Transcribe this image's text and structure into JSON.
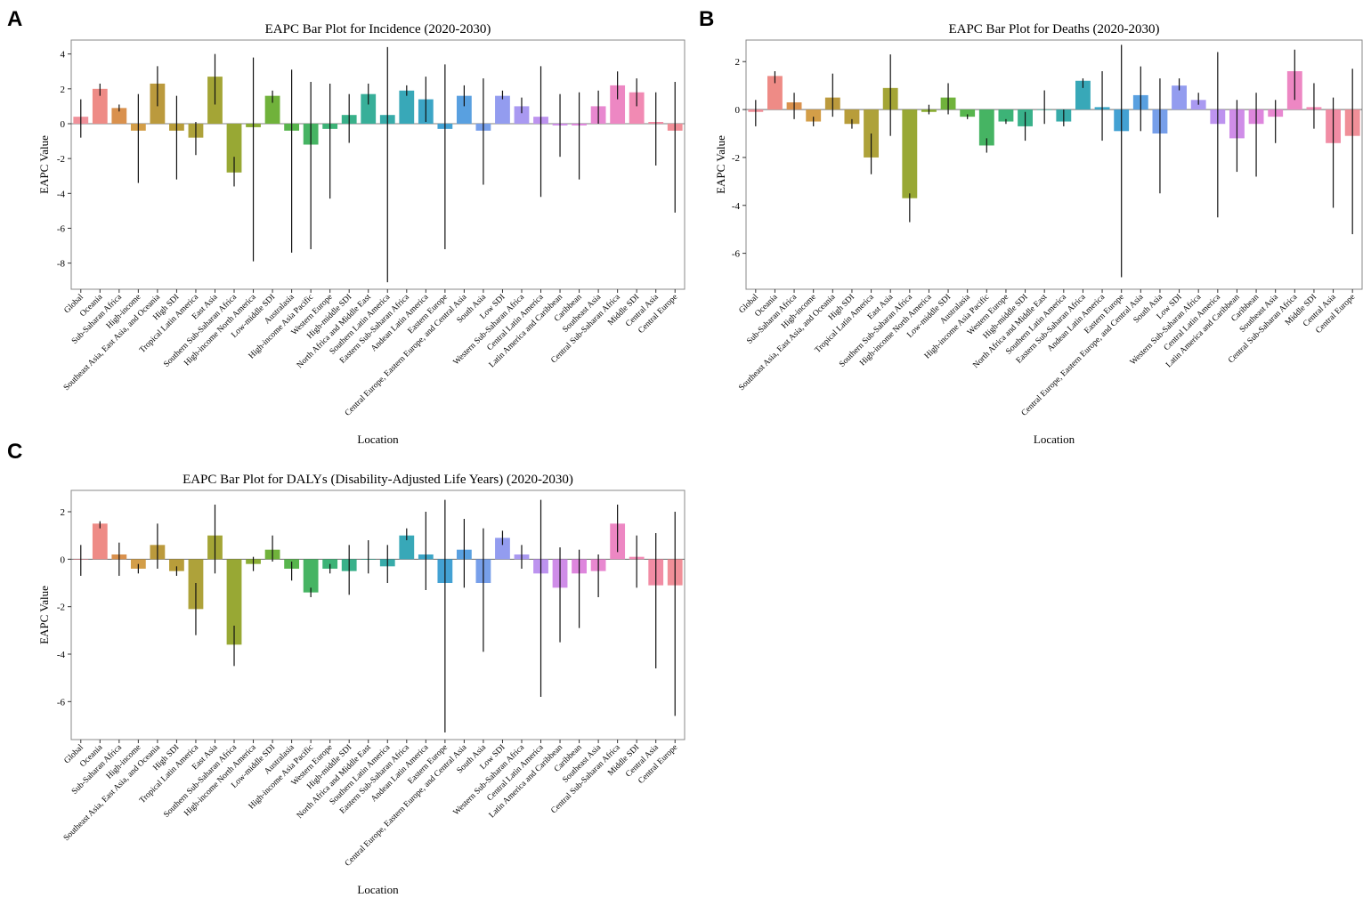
{
  "panels": [
    {
      "letter": "A"
    },
    {
      "letter": "B"
    },
    {
      "letter": "C"
    }
  ],
  "chart_data": [
    {
      "type": "bar",
      "title": "EAPC Bar Plot for Incidence (2020-2030)",
      "xlabel": "Location",
      "ylabel": "EAPC Value",
      "ylim": [
        -9.5,
        4.8
      ],
      "yticks": [
        -8,
        -6,
        -4,
        -2,
        0,
        2,
        4
      ],
      "categories": [
        "Global",
        "Oceania",
        "Sub-Saharan Africa",
        "High-income",
        "Southeast Asia, East Asia, and Oceania",
        "High SDI",
        "Tropical Latin America",
        "East Asia",
        "Southern Sub-Saharan Africa",
        "High-income North America",
        "Low-middle SDI",
        "Australasia",
        "High-income Asia Pacific",
        "Western Europe",
        "High-middle SDI",
        "North Africa and Middle East",
        "Southern Latin America",
        "Eastern Sub-Saharan Africa",
        "Andean Latin America",
        "Eastern Europe",
        "Central Europe, Eastern Europe, and Central Asia",
        "South Asia",
        "Low SDI",
        "Western Sub-Saharan Africa",
        "Central Latin America",
        "Latin America and Caribbean",
        "Caribbean",
        "Southeast Asia",
        "Central Sub-Saharan Africa",
        "Middle SDI",
        "Central Asia",
        "Central Europe"
      ],
      "values": [
        0.4,
        2.0,
        0.9,
        -0.4,
        2.3,
        -0.4,
        -0.8,
        2.7,
        -2.8,
        -0.2,
        1.6,
        -0.4,
        -1.2,
        -0.3,
        0.5,
        1.7,
        0.5,
        1.9,
        1.4,
        -0.3,
        1.6,
        -0.4,
        1.6,
        1.0,
        0.4,
        -0.1,
        -0.1,
        1.0,
        2.2,
        1.8,
        0.1,
        -0.4
      ],
      "err_low": [
        -0.8,
        1.6,
        0.7,
        -3.4,
        1.0,
        -3.2,
        -1.8,
        1.1,
        -3.6,
        -7.9,
        1.2,
        -7.4,
        -7.2,
        -4.3,
        -1.1,
        1.1,
        -9.1,
        1.6,
        0.1,
        -7.2,
        1.0,
        -3.5,
        1.4,
        0.6,
        -4.2,
        -1.9,
        -3.2,
        0.0,
        1.4,
        1.0,
        -2.4,
        -5.1
      ],
      "err_high": [
        1.4,
        2.3,
        1.1,
        1.7,
        3.3,
        1.6,
        0.1,
        4.0,
        -1.9,
        3.8,
        1.9,
        3.1,
        2.4,
        2.3,
        1.7,
        2.3,
        4.4,
        2.2,
        2.7,
        3.4,
        2.2,
        2.6,
        1.9,
        1.5,
        3.3,
        1.7,
        1.8,
        1.9,
        3.0,
        2.6,
        1.8,
        2.4
      ],
      "colors": [
        "#f0919a",
        "#ee8b86",
        "#d9914e",
        "#d39e48",
        "#bb9a3d",
        "#b89d3a",
        "#aea23a",
        "#a4a536",
        "#98a834",
        "#8bad35",
        "#70b23b",
        "#57b54d",
        "#46b463",
        "#3db377",
        "#39b18a",
        "#38af99",
        "#37aba9",
        "#38a8b8",
        "#3ca5c6",
        "#43a1d3",
        "#59a0e0",
        "#779fea",
        "#939cef",
        "#a999f1",
        "#bd93ef",
        "#cf8de8",
        "#de86dd",
        "#e888d0",
        "#ed87c3",
        "#f18ab3",
        "#f18ca4",
        "#f08f98"
      ]
    },
    {
      "type": "bar",
      "title": "EAPC Bar Plot for Deaths (2020-2030)",
      "xlabel": "Location",
      "ylabel": "EAPC Value",
      "ylim": [
        -7.5,
        2.9
      ],
      "yticks": [
        -6,
        -4,
        -2,
        0,
        2
      ],
      "categories": [
        "Global",
        "Oceania",
        "Sub-Saharan Africa",
        "High-income",
        "Southeast Asia, East Asia, and Oceania",
        "High SDI",
        "Tropical Latin America",
        "East Asia",
        "Southern Sub-Saharan Africa",
        "High-income North America",
        "Low-middle SDI",
        "Australasia",
        "High-income Asia Pacific",
        "Western Europe",
        "High-middle SDI",
        "North Africa and Middle East",
        "Southern Latin America",
        "Eastern Sub-Saharan Africa",
        "Andean Latin America",
        "Eastern Europe",
        "Central Europe, Eastern Europe, and Central Asia",
        "South Asia",
        "Low SDI",
        "Western Sub-Saharan Africa",
        "Central Latin America",
        "Latin America and Caribbean",
        "Caribbean",
        "Southeast Asia",
        "Central Sub-Saharan Africa",
        "Middle SDI",
        "Central Asia",
        "Central Europe"
      ],
      "values": [
        -0.1,
        1.4,
        0.3,
        -0.5,
        0.5,
        -0.6,
        -2.0,
        0.9,
        -3.7,
        -0.1,
        0.5,
        -0.3,
        -1.5,
        -0.5,
        -0.7,
        0.0,
        -0.5,
        1.2,
        0.1,
        -0.9,
        0.6,
        -1.0,
        1.0,
        0.4,
        -0.6,
        -1.2,
        -0.6,
        -0.3,
        1.6,
        0.1,
        -1.4,
        -1.1
      ],
      "err_low": [
        -0.7,
        1.1,
        -0.4,
        -0.7,
        -0.3,
        -0.8,
        -2.7,
        -1.1,
        -4.7,
        -0.2,
        -0.2,
        -0.4,
        -1.8,
        -0.6,
        -1.3,
        -0.6,
        -0.7,
        0.9,
        -1.3,
        -7.0,
        -0.9,
        -3.5,
        0.8,
        0.2,
        -4.5,
        -2.6,
        -2.8,
        -1.4,
        0.4,
        -0.8,
        -4.1,
        -5.2
      ],
      "err_high": [
        0.4,
        1.6,
        0.7,
        -0.3,
        1.5,
        -0.4,
        -1.0,
        2.3,
        -3.5,
        0.2,
        1.1,
        -0.2,
        -1.2,
        -0.4,
        -0.1,
        0.8,
        0.0,
        1.3,
        1.6,
        2.7,
        1.8,
        1.3,
        1.3,
        0.7,
        2.4,
        0.4,
        0.7,
        0.4,
        2.5,
        1.1,
        0.5,
        1.7
      ],
      "colors": [
        "#f0919a",
        "#ee8b86",
        "#d9914e",
        "#d39e48",
        "#bb9a3d",
        "#b89d3a",
        "#aea23a",
        "#a4a536",
        "#98a834",
        "#8bad35",
        "#70b23b",
        "#57b54d",
        "#46b463",
        "#3db377",
        "#39b18a",
        "#38af99",
        "#37aba9",
        "#38a8b8",
        "#3ca5c6",
        "#43a1d3",
        "#59a0e0",
        "#779fea",
        "#939cef",
        "#a999f1",
        "#bd93ef",
        "#cf8de8",
        "#de86dd",
        "#e888d0",
        "#ed87c3",
        "#f18ab3",
        "#f18ca4",
        "#f08f98"
      ]
    },
    {
      "type": "bar",
      "title": "EAPC Bar Plot for DALYs (Disability-Adjusted Life Years) (2020-2030)",
      "xlabel": "Location",
      "ylabel": "EAPC Value",
      "ylim": [
        -7.6,
        2.9
      ],
      "yticks": [
        -6,
        -4,
        -2,
        0,
        2
      ],
      "categories": [
        "Global",
        "Oceania",
        "Sub-Saharan Africa",
        "High-income",
        "Southeast Asia, East Asia, and Oceania",
        "High SDI",
        "Tropical Latin America",
        "East Asia",
        "Southern Sub-Saharan Africa",
        "High-income North America",
        "Low-middle SDI",
        "Australasia",
        "High-income Asia Pacific",
        "Western Europe",
        "High-middle SDI",
        "North Africa and Middle East",
        "Southern Latin America",
        "Eastern Sub-Saharan Africa",
        "Andean Latin America",
        "Eastern Europe",
        "Central Europe, Eastern Europe, and Central Asia",
        "South Asia",
        "Low SDI",
        "Western Sub-Saharan Africa",
        "Central Latin America",
        "Latin America and Caribbean",
        "Caribbean",
        "Southeast Asia",
        "Central Sub-Saharan Africa",
        "Middle SDI",
        "Central Asia",
        "Central Europe"
      ],
      "values": [
        0.0,
        1.5,
        0.2,
        -0.4,
        0.6,
        -0.5,
        -2.1,
        1.0,
        -3.6,
        -0.2,
        0.4,
        -0.4,
        -1.4,
        -0.4,
        -0.5,
        0.0,
        -0.3,
        1.0,
        0.2,
        -1.0,
        0.4,
        -1.0,
        0.9,
        0.2,
        -0.6,
        -1.2,
        -0.6,
        -0.5,
        1.5,
        0.1,
        -1.1,
        -1.1
      ],
      "err_low": [
        -0.7,
        1.3,
        -0.7,
        -0.6,
        -0.4,
        -0.7,
        -3.2,
        -0.6,
        -4.5,
        -0.5,
        -0.1,
        -0.9,
        -1.6,
        -0.6,
        -1.5,
        -0.6,
        -1.0,
        0.8,
        -1.3,
        -7.3,
        -1.2,
        -3.9,
        0.6,
        -0.4,
        -5.8,
        -3.5,
        -2.9,
        -1.6,
        0.3,
        -1.2,
        -4.6,
        -6.6
      ],
      "err_high": [
        0.6,
        1.6,
        0.7,
        -0.2,
        1.5,
        -0.3,
        -1.0,
        2.3,
        -2.8,
        0.1,
        1.0,
        -0.1,
        -1.2,
        -0.2,
        0.6,
        0.8,
        0.6,
        1.3,
        2.0,
        2.5,
        1.7,
        1.3,
        1.2,
        0.6,
        2.5,
        0.5,
        0.4,
        0.2,
        2.3,
        1.0,
        1.1,
        2.0
      ],
      "colors": [
        "#f0919a",
        "#ee8b86",
        "#d9914e",
        "#d39e48",
        "#bb9a3d",
        "#b89d3a",
        "#aea23a",
        "#a4a536",
        "#98a834",
        "#8bad35",
        "#70b23b",
        "#57b54d",
        "#46b463",
        "#3db377",
        "#39b18a",
        "#38af99",
        "#37aba9",
        "#38a8b8",
        "#3ca5c6",
        "#43a1d3",
        "#59a0e0",
        "#779fea",
        "#939cef",
        "#a999f1",
        "#bd93ef",
        "#cf8de8",
        "#de86dd",
        "#e888d0",
        "#ed87c3",
        "#f18ab3",
        "#f18ca4",
        "#f08f98"
      ]
    }
  ]
}
